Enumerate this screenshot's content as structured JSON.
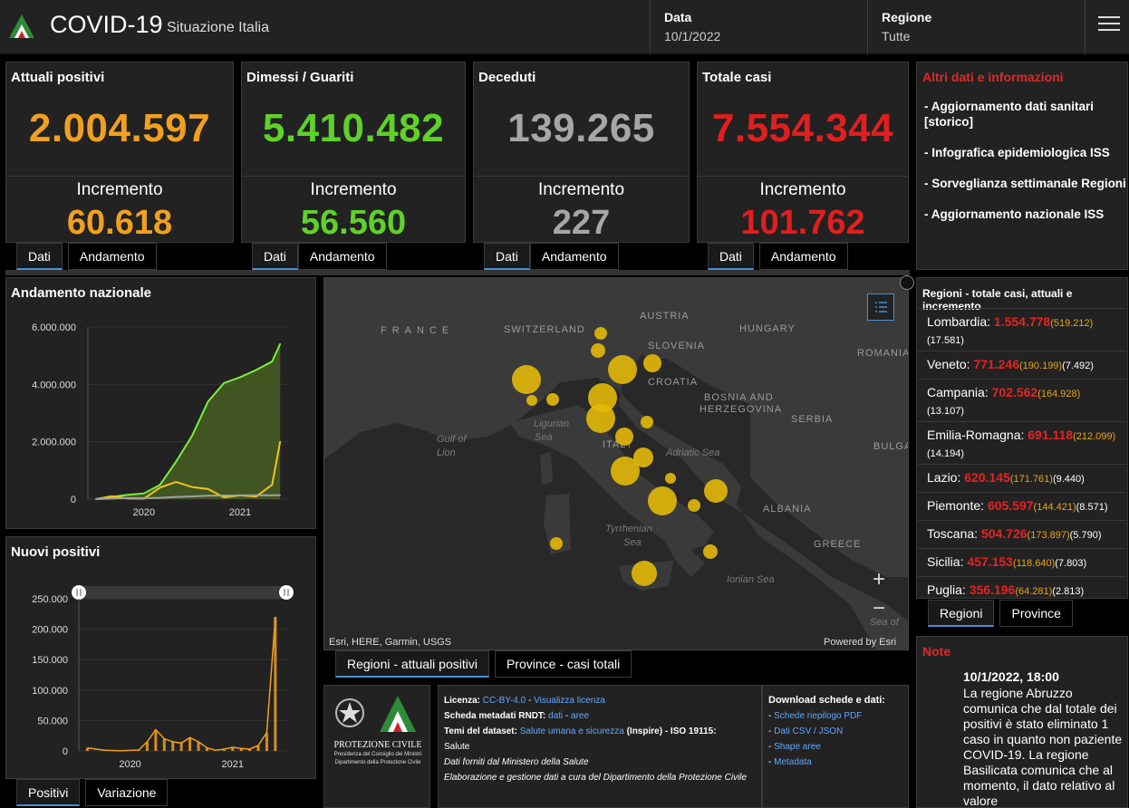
{
  "header": {
    "title": "COVID-19",
    "subtitle": "Situazione Italia",
    "date_label": "Data",
    "date_value": "10/1/2022",
    "region_label": "Regione",
    "region_value": "Tutte"
  },
  "cards": [
    {
      "title": "Attuali positivi",
      "value": "2.004.597",
      "inc_label": "Incremento",
      "inc": "60.618",
      "color": "#f0a020"
    },
    {
      "title": "Dimessi / Guariti",
      "value": "5.410.482",
      "inc_label": "Incremento",
      "inc": "56.560",
      "color": "#5fd12a"
    },
    {
      "title": "Deceduti",
      "value": "139.265",
      "inc_label": "Incremento",
      "inc": "227",
      "color": "#a6a6a6"
    },
    {
      "title": "Totale casi",
      "value": "7.554.344",
      "inc_label": "Incremento",
      "inc": "101.762",
      "color": "#e01f1f"
    }
  ],
  "card_tabs": {
    "dati": "Dati",
    "andamento": "Andamento"
  },
  "info": {
    "title": "Altri dati e informazioni",
    "links": [
      "- Aggiornamento dati sanitari [storico]",
      "- Infografica epidemiologica ISS",
      "- Sorveglianza settimanale Regioni",
      "- Aggiornamento nazionale ISS"
    ]
  },
  "andamento": {
    "title": "Andamento nazionale"
  },
  "nuovi": {
    "title": "Nuovi positivi",
    "tab_positivi": "Positivi",
    "tab_variazione": "Variazione"
  },
  "map": {
    "labels": {
      "france": "FRANCE",
      "switzerland": "SWITZERLAND",
      "austria": "AUSTRIA",
      "hungary": "HUNGARY",
      "slovenia": "SLOVENIA",
      "croatia": "CROATIA",
      "romania": "ROMANIA",
      "bosnia": "BOSNIA AND",
      "herzegovina": "HERZEGOVINA",
      "serbia": "SERBIA",
      "bulgaria": "BULGA",
      "italy": "ITALY",
      "albania": "ALBANIA",
      "greece": "GREECE"
    },
    "seas": {
      "ligurian1": "Ligurian",
      "ligurian2": "Sea",
      "gulf1": "Gulf of",
      "gulf2": "Lion",
      "adriatic": "Adriatic Sea",
      "tyrrhenian1": "Tyrrhenian",
      "tyrrhenian2": "Sea",
      "ionian": "Ionian Sea",
      "seaof": "Sea of"
    },
    "attribution": "Esri, HERE, Garmin, USGS",
    "powered": "Powered by Esri",
    "tab_regioni": "Regioni - attuali positivi",
    "tab_province": "Province - casi totali",
    "zoom_in": "+",
    "zoom_out": "−"
  },
  "regions": {
    "title": "Regioni - totale casi, attuali e incremento",
    "rows": [
      {
        "name": "Lombardia:",
        "total": "1.554.778",
        "attuali": "(519.212)",
        "inc": "(17.581)"
      },
      {
        "name": "Veneto:",
        "total": "771.246",
        "attuali": "(190.199)",
        "inc": "(7.492)"
      },
      {
        "name": "Campania:",
        "total": "702.562",
        "attuali": "(164.928)",
        "inc": "(13.107)"
      },
      {
        "name": "Emilia-Romagna:",
        "total": "691.118",
        "attuali": "(212.099)",
        "inc": "(14.194)"
      },
      {
        "name": "Lazio:",
        "total": "620.145",
        "attuali": "(171.761)",
        "inc": "(9.440)"
      },
      {
        "name": "Piemonte:",
        "total": "605.597",
        "attuali": "(144.421)",
        "inc": "(8.571)"
      },
      {
        "name": "Toscana:",
        "total": "504.726",
        "attuali": "(173.897)",
        "inc": "(5.790)"
      },
      {
        "name": "Sicilia:",
        "total": "457.153",
        "attuali": "(118.640)",
        "inc": "(7.803)"
      },
      {
        "name": "Puglia:",
        "total": "356.196",
        "attuali": "(64.281)",
        "inc": "(2.813)"
      }
    ],
    "tab_regioni": "Regioni",
    "tab_province": "Province"
  },
  "note": {
    "title": "Note",
    "date": "10/1/2022, 18:00",
    "text": "La regione Abruzzo comunica che dal totale dei positivi è stato eliminato 1 caso in quanto non paziente COVID-19. La regione Basilicata comunica che al momento, il dato relativo al valore"
  },
  "footer": {
    "logo_text1": "PROTEZIONE CIVILE",
    "logo_text2": "Presidenza del Consiglio dei Ministri",
    "logo_text3": "Dipartimento della Protezione Civile",
    "licenza_label": "Licenza:",
    "licenza": "CC-BY-4.0",
    "sep": " - ",
    "visualizza": "Visualizza licenza",
    "scheda_label": "Scheda metadati RNDT:",
    "dati": "dati",
    "aree": "aree",
    "temi_label": "Temi del dataset:",
    "temi": "Salute umana e sicurezza",
    "temi_tail": "(Inspire) - ISO 19115:",
    "salute": "Salute",
    "forniti": "Dati forniti dal Ministero della Salute",
    "elaborazione": "Elaborazione e gestione dati a cura del Dipartimento della Protezione Civile",
    "download_title": "Download schede e dati:",
    "dl1": "Schede riepilogo PDF",
    "dl2": "Dati CSV / JSON",
    "dl3": "Shape aree",
    "dl4": "Metadata"
  },
  "chart_data": [
    {
      "type": "area",
      "title": "Andamento nazionale",
      "x": [
        "2020-02",
        "2020-04",
        "2020-06",
        "2020-08",
        "2020-10",
        "2020-12",
        "2021-02",
        "2021-04",
        "2021-06",
        "2021-08",
        "2021-10",
        "2021-12",
        "2022-01"
      ],
      "x_tick_labels": [
        "2020",
        "2021"
      ],
      "ylim": [
        0,
        6000000
      ],
      "y_tick_labels": [
        "0",
        "2.000.000",
        "4.000.000",
        "6.000.000"
      ],
      "series": [
        {
          "values": [
            0,
            80000,
            150000,
            200000,
            500000,
            1300000,
            2200000,
            3400000,
            4050000,
            4250000,
            4500000,
            4800000,
            5410482
          ],
          "color": "#7bf03a"
        },
        {
          "values": [
            0,
            100000,
            20000,
            15000,
            400000,
            600000,
            420000,
            350000,
            60000,
            130000,
            90000,
            500000,
            2004597
          ],
          "color": "#f0c419"
        },
        {
          "values": [
            0,
            20000,
            35000,
            35000,
            45000,
            75000,
            95000,
            120000,
            127000,
            129000,
            132000,
            136000,
            139265
          ],
          "color": "#a0a0a0"
        }
      ]
    },
    {
      "type": "bar",
      "title": "Nuovi positivi",
      "x_tick_labels": [
        "2020",
        "2021"
      ],
      "ylim": [
        0,
        250000
      ],
      "y_tick_labels": [
        "0",
        "50.000",
        "100.000",
        "150.000",
        "200.000",
        "250.000"
      ],
      "series": [
        {
          "x": [
            "2020-03",
            "2020-05",
            "2020-07",
            "2020-09",
            "2020-10",
            "2020-11",
            "2020-12",
            "2021-01",
            "2021-02",
            "2021-03",
            "2021-04",
            "2021-05",
            "2021-06",
            "2021-07",
            "2021-08",
            "2021-09",
            "2021-10",
            "2021-11",
            "2021-12",
            "2022-01"
          ],
          "values": [
            5000,
            1000,
            300,
            1500,
            15000,
            35000,
            20000,
            15000,
            13000,
            22000,
            15000,
            5000,
            1200,
            3000,
            6000,
            4000,
            3000,
            9000,
            30000,
            220000
          ],
          "color": "#f0a020"
        }
      ]
    }
  ]
}
